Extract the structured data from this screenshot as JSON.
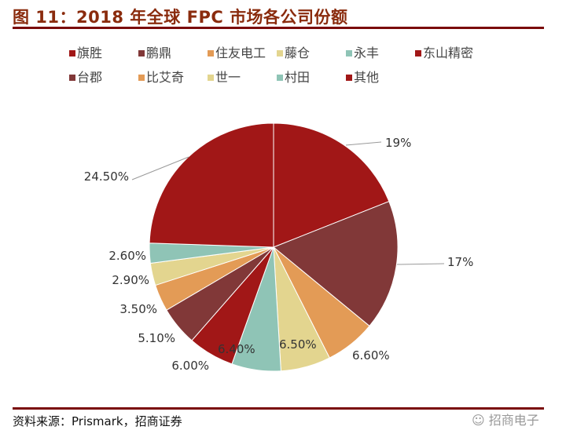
{
  "title": "图 11：2018 年全球 FPC 市场各公司份额",
  "source": "资料来源：Prismark，招商证券",
  "brand": "招商电子",
  "chart_data": {
    "type": "pie",
    "title": "图 11：2018 年全球 FPC 市场各公司份额",
    "start_angle": "12 o'clock",
    "direction": "clockwise",
    "legend_placement": "top",
    "slices": [
      {
        "name": "旗胜",
        "value": 19,
        "label": "19%",
        "color": "#a11717"
      },
      {
        "name": "鹏鼎",
        "value": 17,
        "label": "17%",
        "color": "#813838"
      },
      {
        "name": "住友电工",
        "value": 6.6,
        "label": "6.60%",
        "color": "#e39b56"
      },
      {
        "name": "藤仓",
        "value": 6.5,
        "label": "6.50%",
        "color": "#e3d58f"
      },
      {
        "name": "永丰",
        "value": 6.4,
        "label": "6.40%",
        "color": "#8fc4b6"
      },
      {
        "name": "东山精密",
        "value": 6.0,
        "label": "6.00%",
        "color": "#a11717"
      },
      {
        "name": "台郡",
        "value": 5.1,
        "label": "5.10%",
        "color": "#813838"
      },
      {
        "name": "比艾奇",
        "value": 3.5,
        "label": "3.50%",
        "color": "#e39b56"
      },
      {
        "name": "世一",
        "value": 2.9,
        "label": "2.90%",
        "color": "#e3d58f"
      },
      {
        "name": "村田",
        "value": 2.6,
        "label": "2.60%",
        "color": "#8fc4b6"
      },
      {
        "name": "其他",
        "value": 24.5,
        "label": "24.50%",
        "color": "#a11717"
      }
    ]
  }
}
